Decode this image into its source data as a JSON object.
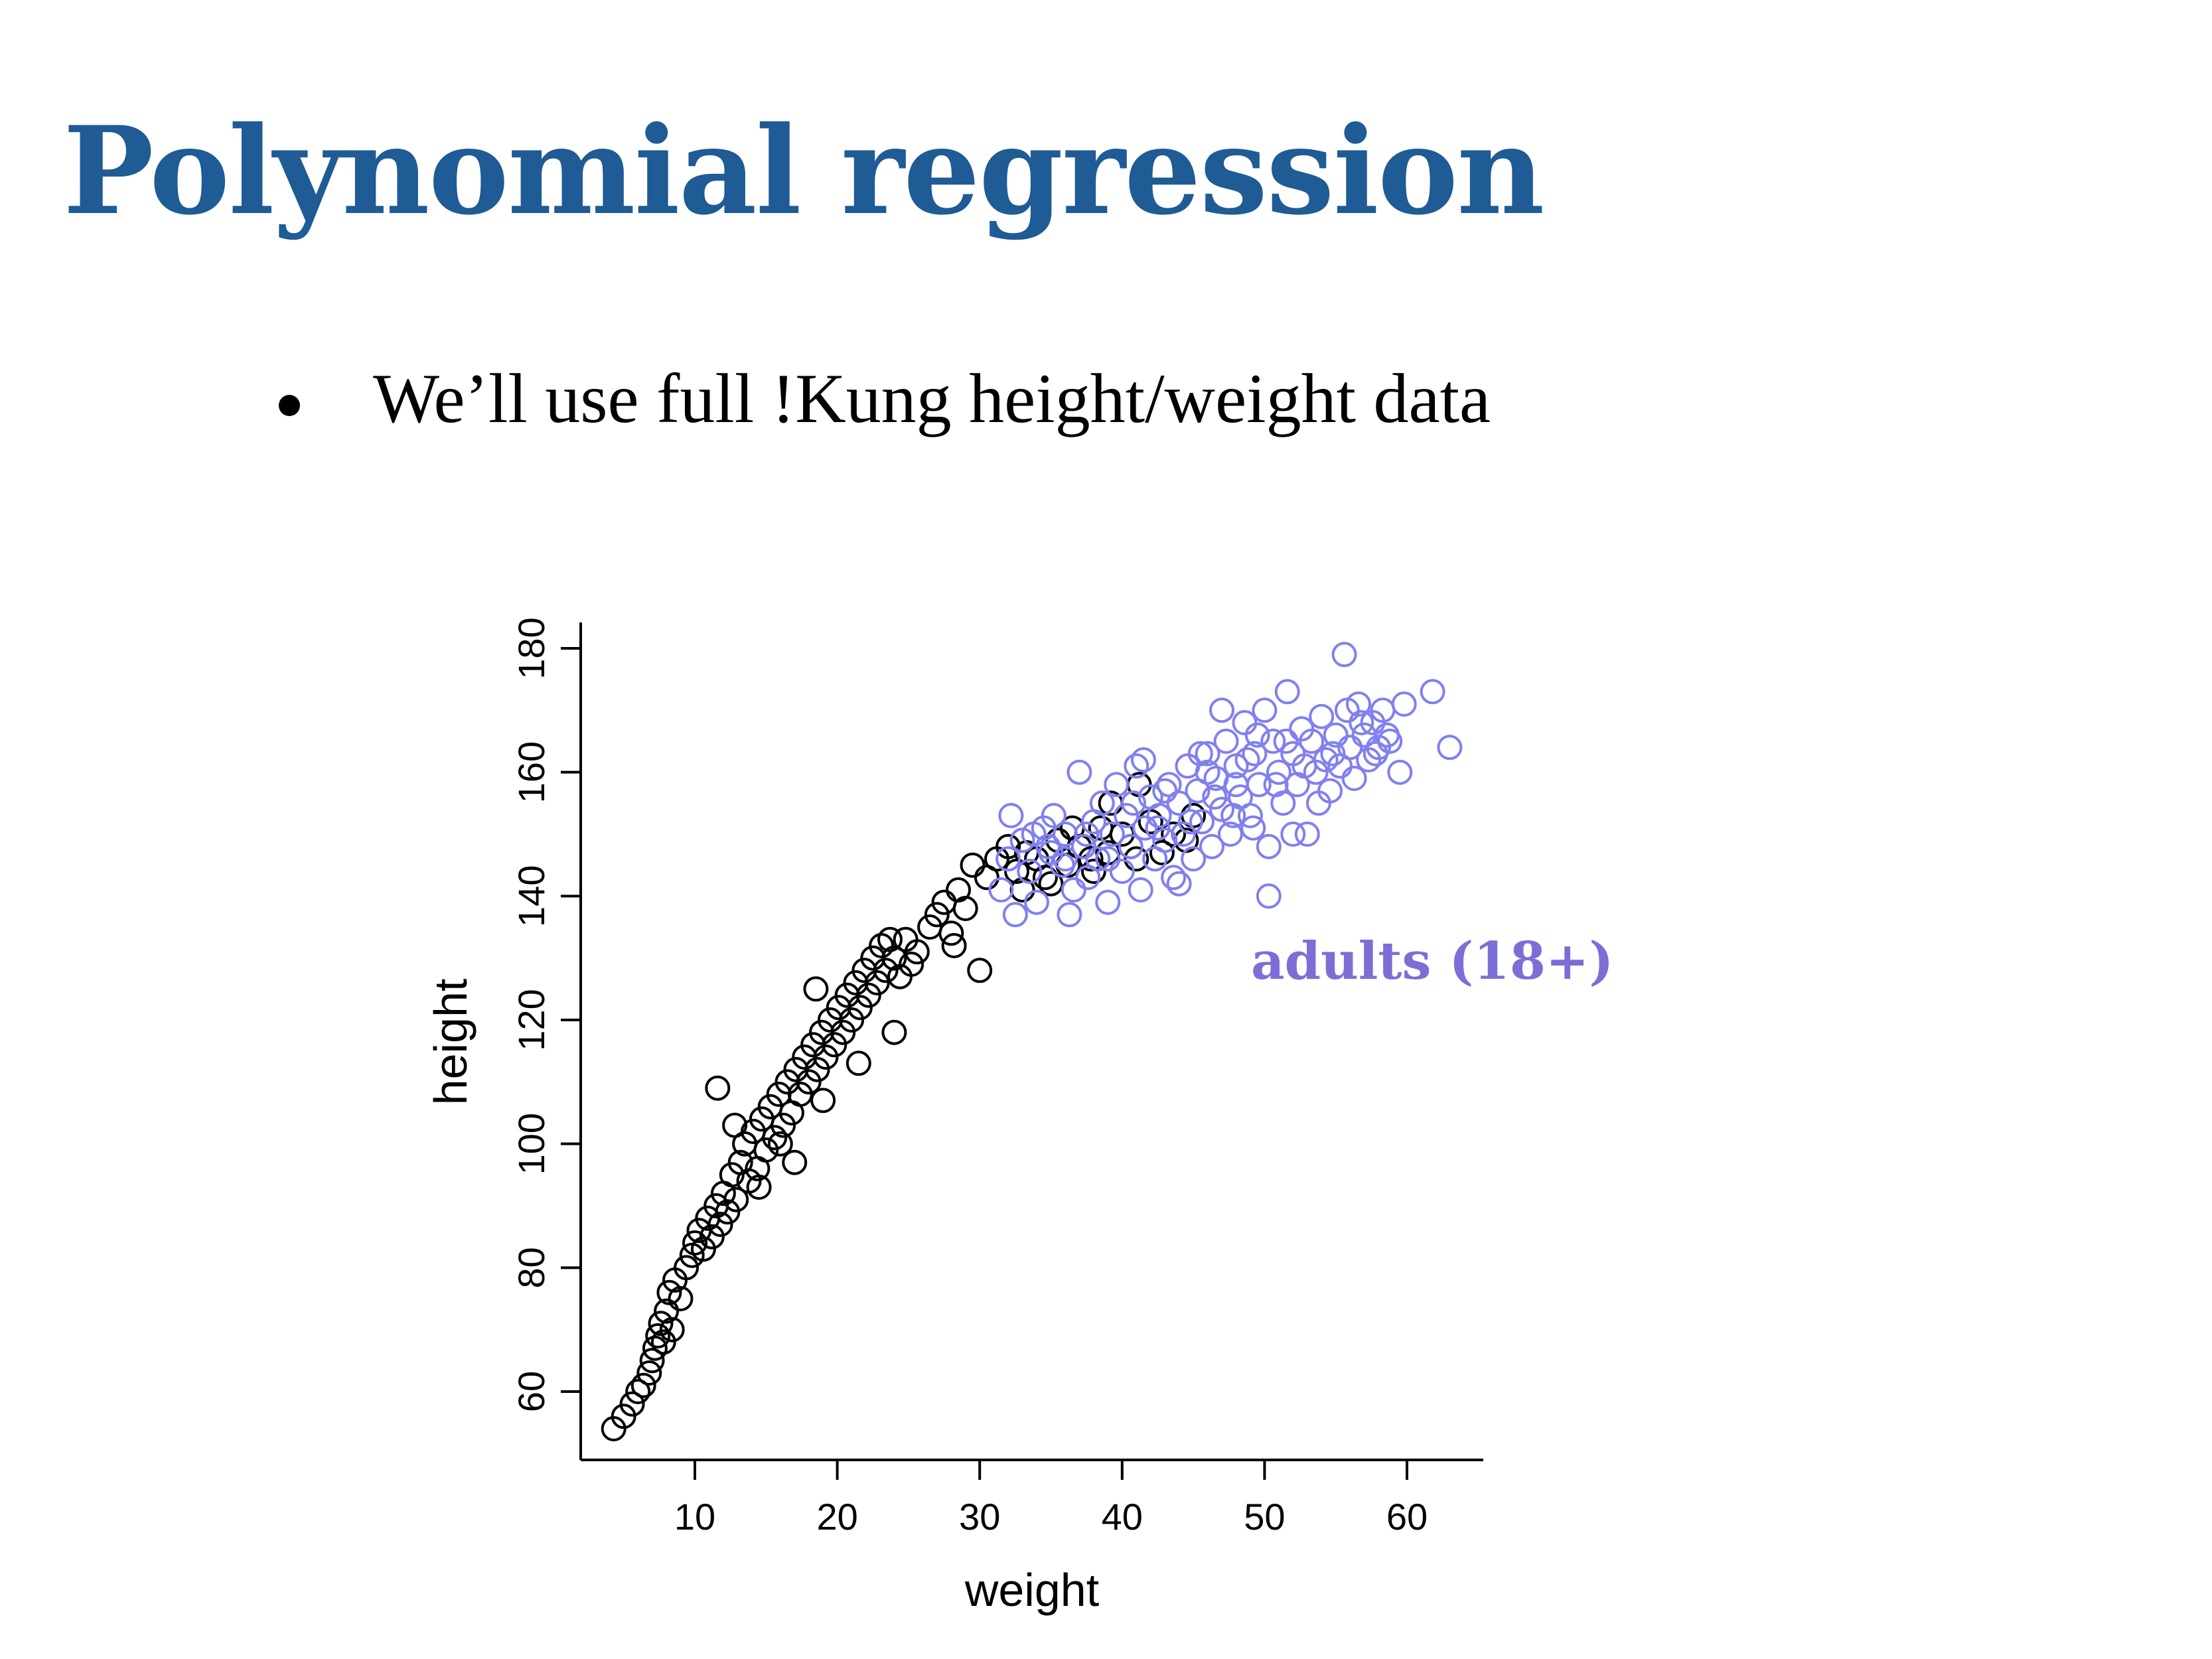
{
  "slide": {
    "title": "Polynomial regression",
    "bullet": "We’ll use full !Kung height/weight data"
  },
  "colors": {
    "title": "#1f5b95",
    "adult": "#8080f0",
    "child": "#000000",
    "annotation": "#7b6fd6"
  },
  "chart_data": {
    "type": "scatter",
    "xlabel": "weight",
    "ylabel": "height",
    "xlim": [
      3.5,
      65.5
    ],
    "ylim": [
      50,
      185
    ],
    "xticks": [
      10,
      20,
      30,
      40,
      50,
      60
    ],
    "yticks": [
      60,
      80,
      100,
      120,
      140,
      160,
      180
    ],
    "grid": false,
    "annotation": {
      "text": "adults (18+)",
      "color": "#7b6fd6"
    },
    "series": [
      {
        "key": "children",
        "color": "#000000",
        "points": [
          [
            4.3,
            54
          ],
          [
            5.0,
            56
          ],
          [
            5.6,
            58
          ],
          [
            6.0,
            60
          ],
          [
            6.4,
            61
          ],
          [
            6.8,
            63
          ],
          [
            7.0,
            65
          ],
          [
            7.2,
            67
          ],
          [
            7.4,
            69
          ],
          [
            7.6,
            71
          ],
          [
            7.8,
            68
          ],
          [
            8.0,
            73
          ],
          [
            8.2,
            76
          ],
          [
            8.4,
            70
          ],
          [
            8.6,
            78
          ],
          [
            9.0,
            75
          ],
          [
            9.4,
            80
          ],
          [
            9.8,
            82
          ],
          [
            10.0,
            84
          ],
          [
            10.3,
            86
          ],
          [
            10.6,
            83
          ],
          [
            10.9,
            88
          ],
          [
            11.2,
            85
          ],
          [
            11.5,
            90
          ],
          [
            11.8,
            87
          ],
          [
            12.0,
            92
          ],
          [
            12.3,
            89
          ],
          [
            12.6,
            95
          ],
          [
            12.9,
            91
          ],
          [
            13.2,
            97
          ],
          [
            13.5,
            100
          ],
          [
            13.8,
            94
          ],
          [
            14.1,
            102
          ],
          [
            14.4,
            96
          ],
          [
            14.7,
            104
          ],
          [
            15.0,
            99
          ],
          [
            15.3,
            106
          ],
          [
            15.6,
            101
          ],
          [
            15.9,
            108
          ],
          [
            16.2,
            103
          ],
          [
            16.5,
            110
          ],
          [
            16.8,
            105
          ],
          [
            17.1,
            112
          ],
          [
            17.4,
            108
          ],
          [
            17.7,
            114
          ],
          [
            18.0,
            110
          ],
          [
            18.3,
            116
          ],
          [
            18.6,
            112
          ],
          [
            18.9,
            118
          ],
          [
            19.2,
            114
          ],
          [
            19.5,
            120
          ],
          [
            19.8,
            116
          ],
          [
            20.1,
            122
          ],
          [
            20.4,
            118
          ],
          [
            20.7,
            124
          ],
          [
            21.0,
            120
          ],
          [
            21.3,
            126
          ],
          [
            21.6,
            122
          ],
          [
            21.9,
            128
          ],
          [
            22.2,
            124
          ],
          [
            22.5,
            130
          ],
          [
            22.8,
            126
          ],
          [
            23.1,
            132
          ],
          [
            23.4,
            128
          ],
          [
            23.7,
            133
          ],
          [
            24.0,
            130
          ],
          [
            24.4,
            127
          ],
          [
            24.8,
            133
          ],
          [
            25.2,
            129
          ],
          [
            25.6,
            131
          ],
          [
            11.6,
            109
          ],
          [
            17.0,
            97
          ],
          [
            24.0,
            118
          ],
          [
            30.0,
            128
          ],
          [
            18.5,
            125
          ],
          [
            21.5,
            113
          ],
          [
            16.0,
            100
          ],
          [
            12.8,
            103
          ],
          [
            14.5,
            93
          ],
          [
            19.0,
            107
          ],
          [
            26.5,
            135
          ],
          [
            27.0,
            137
          ],
          [
            27.5,
            139
          ],
          [
            28.0,
            134
          ],
          [
            28.5,
            141
          ],
          [
            29.0,
            138
          ],
          [
            29.5,
            145
          ],
          [
            28.2,
            132
          ],
          [
            30.5,
            143
          ],
          [
            31.2,
            146
          ],
          [
            32.0,
            148
          ],
          [
            32.6,
            144
          ],
          [
            33.3,
            147
          ],
          [
            34.0,
            146
          ],
          [
            34.6,
            143
          ],
          [
            35.5,
            149
          ],
          [
            36.2,
            145
          ],
          [
            37.0,
            148
          ],
          [
            37.8,
            146
          ],
          [
            38.5,
            151
          ],
          [
            39.2,
            155
          ],
          [
            40.0,
            150
          ],
          [
            40.6,
            148
          ],
          [
            41.2,
            158
          ],
          [
            42.0,
            152
          ],
          [
            42.8,
            147
          ],
          [
            43.6,
            150
          ],
          [
            44.5,
            149
          ],
          [
            45.0,
            153
          ],
          [
            33.0,
            141
          ],
          [
            35.0,
            142
          ],
          [
            38.0,
            144
          ],
          [
            41.0,
            146
          ],
          [
            36.5,
            151
          ],
          [
            39.0,
            147
          ]
        ]
      },
      {
        "key": "adults",
        "color": "#8080f0",
        "points": [
          [
            31.5,
            141
          ],
          [
            32.0,
            146
          ],
          [
            32.2,
            153
          ],
          [
            32.5,
            137
          ],
          [
            33.0,
            149
          ],
          [
            33.5,
            144
          ],
          [
            34.0,
            139
          ],
          [
            34.5,
            151
          ],
          [
            35.0,
            147
          ],
          [
            35.2,
            153
          ],
          [
            35.8,
            145
          ],
          [
            36.0,
            150
          ],
          [
            36.3,
            137
          ],
          [
            36.6,
            141
          ],
          [
            37.0,
            160
          ],
          [
            37.3,
            148
          ],
          [
            37.6,
            143
          ],
          [
            38.0,
            152
          ],
          [
            38.3,
            146
          ],
          [
            38.6,
            155
          ],
          [
            39.0,
            139
          ],
          [
            39.3,
            150
          ],
          [
            39.6,
            158
          ],
          [
            40.0,
            144
          ],
          [
            40.3,
            153
          ],
          [
            40.6,
            148
          ],
          [
            41.0,
            161
          ],
          [
            41.3,
            141
          ],
          [
            41.6,
            151
          ],
          [
            42.0,
            156
          ],
          [
            42.3,
            146
          ],
          [
            42.6,
            153
          ],
          [
            43.0,
            149
          ],
          [
            43.3,
            158
          ],
          [
            43.6,
            143
          ],
          [
            44.0,
            155
          ],
          [
            44.3,
            150
          ],
          [
            44.6,
            161
          ],
          [
            45.0,
            146
          ],
          [
            45.3,
            157
          ],
          [
            45.6,
            152
          ],
          [
            46.0,
            163
          ],
          [
            46.3,
            148
          ],
          [
            46.6,
            159
          ],
          [
            47.0,
            154
          ],
          [
            47.3,
            165
          ],
          [
            47.6,
            150
          ],
          [
            48.0,
            161
          ],
          [
            48.3,
            156
          ],
          [
            48.6,
            168
          ],
          [
            49.0,
            153
          ],
          [
            49.3,
            163
          ],
          [
            49.6,
            158
          ],
          [
            50.0,
            170
          ],
          [
            50.3,
            148
          ],
          [
            50.6,
            165
          ],
          [
            51.0,
            160
          ],
          [
            51.3,
            155
          ],
          [
            51.6,
            173
          ],
          [
            52.0,
            163
          ],
          [
            52.3,
            158
          ],
          [
            52.6,
            167
          ],
          [
            53.0,
            150
          ],
          [
            53.3,
            165
          ],
          [
            53.6,
            160
          ],
          [
            54.0,
            169
          ],
          [
            54.3,
            162
          ],
          [
            54.6,
            157
          ],
          [
            55.0,
            166
          ],
          [
            55.3,
            161
          ],
          [
            55.6,
            179
          ],
          [
            56.0,
            164
          ],
          [
            56.3,
            159
          ],
          [
            56.6,
            171
          ],
          [
            57.0,
            166
          ],
          [
            57.3,
            162
          ],
          [
            57.6,
            168
          ],
          [
            58.0,
            164
          ],
          [
            58.3,
            170
          ],
          [
            58.6,
            166
          ],
          [
            59.5,
            160
          ],
          [
            59.8,
            171
          ],
          [
            61.8,
            173
          ],
          [
            63.0,
            164
          ],
          [
            50.3,
            140
          ],
          [
            41.5,
            162
          ],
          [
            44.0,
            142
          ],
          [
            47.0,
            170
          ],
          [
            45.5,
            163
          ],
          [
            48.0,
            158
          ],
          [
            46.5,
            156
          ],
          [
            47.8,
            153
          ],
          [
            49.5,
            166
          ],
          [
            43.0,
            157
          ],
          [
            44.8,
            152
          ],
          [
            46.0,
            160
          ],
          [
            48.8,
            162
          ],
          [
            50.8,
            158
          ],
          [
            52.8,
            161
          ],
          [
            54.8,
            163
          ],
          [
            56.8,
            168
          ],
          [
            42.5,
            151
          ],
          [
            40.8,
            155
          ],
          [
            39.0,
            146
          ],
          [
            37.5,
            150
          ],
          [
            36.0,
            146
          ],
          [
            34.8,
            148
          ],
          [
            33.8,
            150
          ],
          [
            52.0,
            150
          ],
          [
            53.8,
            155
          ],
          [
            51.5,
            165
          ],
          [
            49.2,
            151
          ],
          [
            57.8,
            163
          ],
          [
            55.8,
            170
          ],
          [
            58.8,
            165
          ]
        ]
      }
    ]
  }
}
